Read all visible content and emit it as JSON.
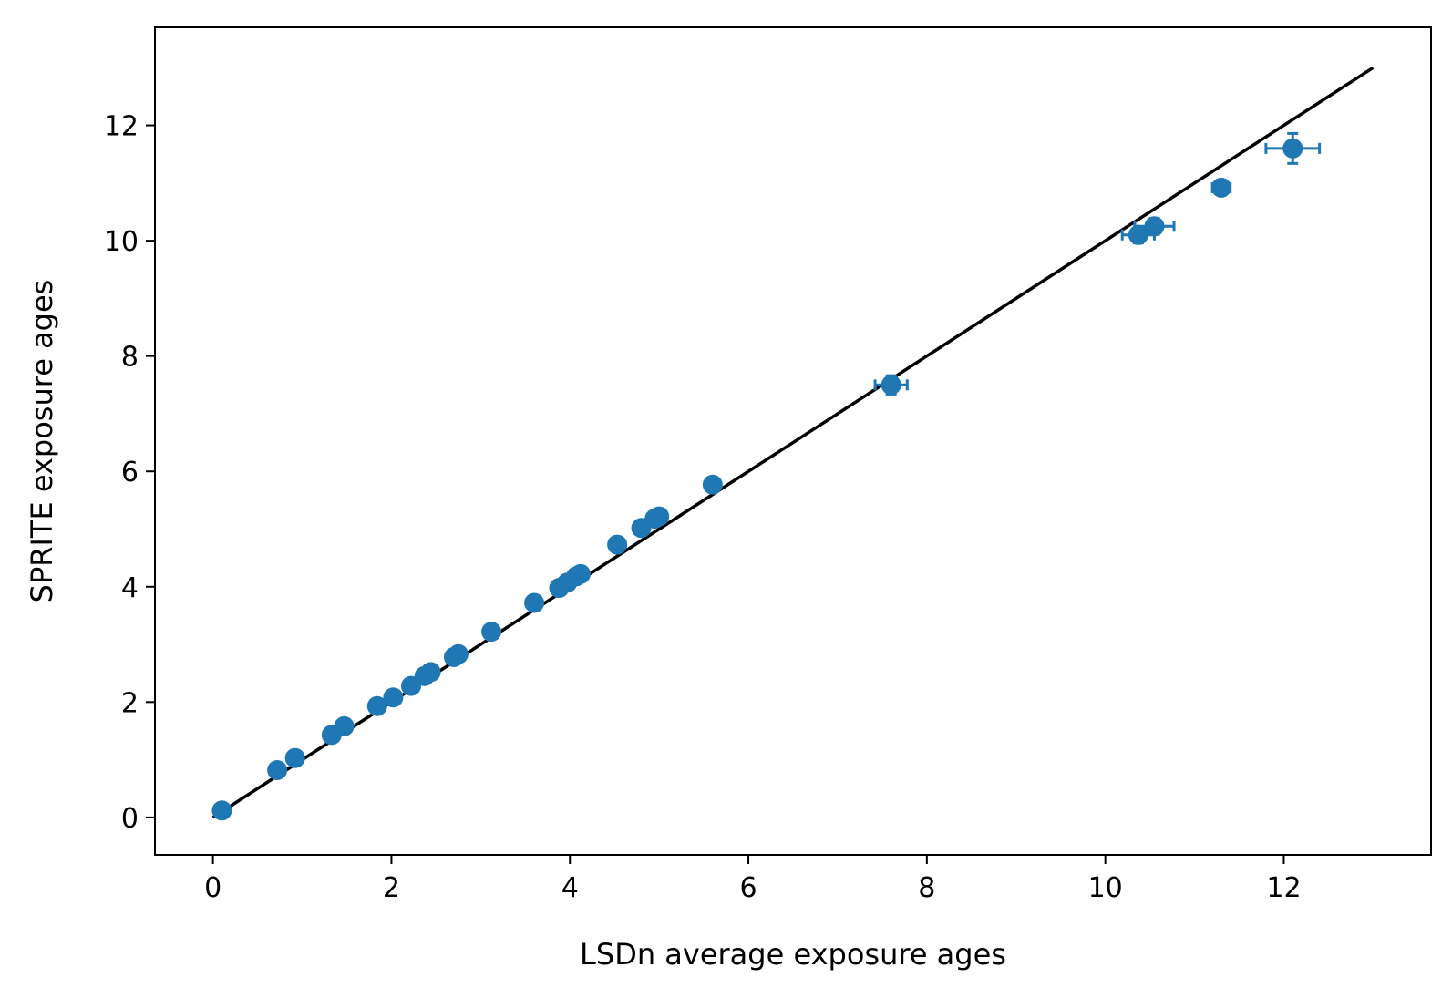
{
  "chart_data": {
    "type": "scatter",
    "title": "",
    "xlabel": "LSDn average exposure ages",
    "ylabel": "SPRITE exposure ages",
    "xlim": [
      -0.65,
      13.65
    ],
    "ylim": [
      -0.65,
      13.7
    ],
    "xticks": [
      0,
      2,
      4,
      6,
      8,
      10,
      12
    ],
    "yticks": [
      0,
      2,
      4,
      6,
      8,
      10,
      12
    ],
    "xtick_labels": [
      "0",
      "2",
      "4",
      "6",
      "8",
      "10",
      "12"
    ],
    "ytick_labels": [
      "0",
      "2",
      "4",
      "6",
      "8",
      "10",
      "12"
    ],
    "grid": false,
    "legend": "none",
    "reference_line": {
      "x": [
        0,
        13
      ],
      "y": [
        0,
        13
      ],
      "color": "#000000"
    },
    "series": [
      {
        "color": "#1f77b4",
        "points": [
          {
            "x": 0.1,
            "y": 0.12,
            "xerr": 0,
            "yerr": 0
          },
          {
            "x": 0.72,
            "y": 0.82,
            "xerr": 0,
            "yerr": 0
          },
          {
            "x": 0.92,
            "y": 1.03,
            "xerr": 0,
            "yerr": 0
          },
          {
            "x": 1.33,
            "y": 1.43,
            "xerr": 0,
            "yerr": 0
          },
          {
            "x": 1.47,
            "y": 1.58,
            "xerr": 0,
            "yerr": 0
          },
          {
            "x": 1.84,
            "y": 1.93,
            "xerr": 0,
            "yerr": 0
          },
          {
            "x": 2.02,
            "y": 2.08,
            "xerr": 0,
            "yerr": 0
          },
          {
            "x": 2.22,
            "y": 2.28,
            "xerr": 0,
            "yerr": 0
          },
          {
            "x": 2.37,
            "y": 2.45,
            "xerr": 0,
            "yerr": 0
          },
          {
            "x": 2.44,
            "y": 2.52,
            "xerr": 0,
            "yerr": 0
          },
          {
            "x": 2.7,
            "y": 2.78,
            "xerr": 0,
            "yerr": 0
          },
          {
            "x": 2.75,
            "y": 2.83,
            "xerr": 0,
            "yerr": 0
          },
          {
            "x": 3.12,
            "y": 3.22,
            "xerr": 0,
            "yerr": 0
          },
          {
            "x": 3.6,
            "y": 3.72,
            "xerr": 0,
            "yerr": 0
          },
          {
            "x": 3.88,
            "y": 3.98,
            "xerr": 0,
            "yerr": 0
          },
          {
            "x": 3.97,
            "y": 4.07,
            "xerr": 0,
            "yerr": 0
          },
          {
            "x": 4.07,
            "y": 4.18,
            "xerr": 0,
            "yerr": 0
          },
          {
            "x": 4.12,
            "y": 4.22,
            "xerr": 0,
            "yerr": 0
          },
          {
            "x": 4.53,
            "y": 4.73,
            "xerr": 0,
            "yerr": 0
          },
          {
            "x": 4.8,
            "y": 5.02,
            "xerr": 0,
            "yerr": 0
          },
          {
            "x": 4.95,
            "y": 5.18,
            "xerr": 0,
            "yerr": 0
          },
          {
            "x": 5.0,
            "y": 5.22,
            "xerr": 0,
            "yerr": 0
          },
          {
            "x": 5.6,
            "y": 5.77,
            "xerr": 0,
            "yerr": 0.06
          },
          {
            "x": 7.6,
            "y": 7.5,
            "xerr": 0.18,
            "yerr": 0.16
          },
          {
            "x": 10.37,
            "y": 10.1,
            "xerr": 0.18,
            "yerr": 0.14
          },
          {
            "x": 10.55,
            "y": 10.25,
            "xerr": 0.22,
            "yerr": 0.14
          },
          {
            "x": 11.3,
            "y": 10.92,
            "xerr": 0.1,
            "yerr": 0.08
          },
          {
            "x": 12.1,
            "y": 11.6,
            "xerr": 0.3,
            "yerr": 0.26
          }
        ]
      }
    ]
  }
}
